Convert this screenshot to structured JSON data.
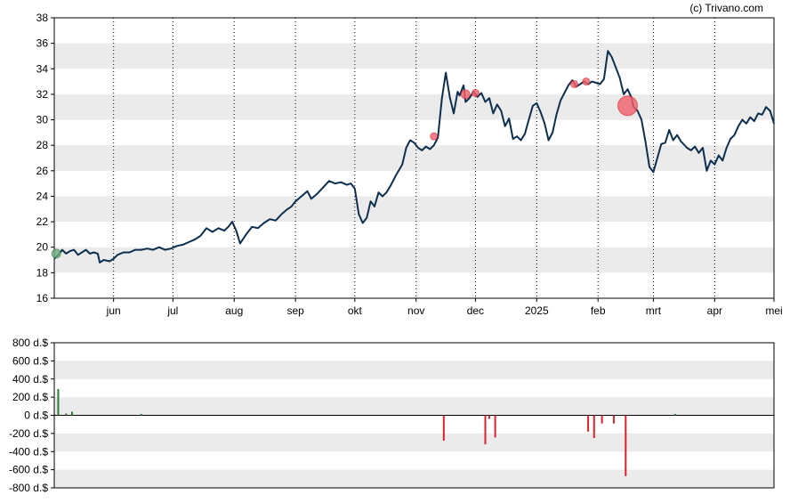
{
  "credit": "(c) Trivano.com",
  "colors": {
    "price_line": "#0d2f4f",
    "band": "#ebebeb",
    "sell": "#e0202a",
    "buy": "#2a7a3a",
    "sell_marker": "#f0606a",
    "buy_marker": "#6fae7f"
  },
  "chart_data": [
    {
      "type": "line",
      "title": "",
      "ylabel": "",
      "ylim": [
        16,
        38
      ],
      "y_ticks": [
        "16",
        "18",
        "20",
        "22",
        "24",
        "26",
        "28",
        "30",
        "32",
        "34",
        "36",
        "38"
      ],
      "x_tick_labels": [
        "jun",
        "jul",
        "aug",
        "sep",
        "okt",
        "nov",
        "dec",
        "2025",
        "feb",
        "mrt",
        "apr",
        "mei"
      ],
      "x_tick_days": [
        30,
        60,
        91,
        122,
        152,
        183,
        213,
        244,
        275,
        303,
        334,
        364
      ],
      "xlim_days": [
        0,
        364
      ],
      "grid": "vertical dotted at month ticks, alternating horizontal bands",
      "series": [
        {
          "name": "",
          "points": [
            [
              0,
              19.1
            ],
            [
              2,
              19.4
            ],
            [
              4,
              19.8
            ],
            [
              6,
              19.5
            ],
            [
              8,
              19.7
            ],
            [
              10,
              19.8
            ],
            [
              12,
              19.4
            ],
            [
              14,
              19.6
            ],
            [
              16,
              19.8
            ],
            [
              18,
              19.5
            ],
            [
              20,
              19.6
            ],
            [
              22,
              19.5
            ],
            [
              23,
              18.8
            ],
            [
              25,
              19.0
            ],
            [
              28,
              18.9
            ],
            [
              30,
              19.1
            ],
            [
              32,
              19.4
            ],
            [
              35,
              19.6
            ],
            [
              38,
              19.6
            ],
            [
              41,
              19.8
            ],
            [
              44,
              19.8
            ],
            [
              47,
              19.9
            ],
            [
              50,
              19.8
            ],
            [
              53,
              20.0
            ],
            [
              56,
              19.8
            ],
            [
              59,
              19.9
            ],
            [
              62,
              20.1
            ],
            [
              65,
              20.2
            ],
            [
              68,
              20.4
            ],
            [
              71,
              20.6
            ],
            [
              74,
              20.9
            ],
            [
              77,
              21.5
            ],
            [
              80,
              21.2
            ],
            [
              83,
              21.5
            ],
            [
              86,
              21.3
            ],
            [
              88,
              21.6
            ],
            [
              90,
              22.0
            ],
            [
              92,
              21.3
            ],
            [
              94,
              20.3
            ],
            [
              97,
              21.0
            ],
            [
              100,
              21.6
            ],
            [
              103,
              21.5
            ],
            [
              106,
              21.9
            ],
            [
              109,
              22.2
            ],
            [
              112,
              22.1
            ],
            [
              115,
              22.6
            ],
            [
              118,
              23.0
            ],
            [
              120,
              23.2
            ],
            [
              122,
              23.6
            ],
            [
              125,
              24.0
            ],
            [
              128,
              24.4
            ],
            [
              130,
              23.8
            ],
            [
              133,
              24.2
            ],
            [
              136,
              24.7
            ],
            [
              139,
              25.2
            ],
            [
              142,
              25.0
            ],
            [
              145,
              25.1
            ],
            [
              148,
              24.9
            ],
            [
              150,
              25.0
            ],
            [
              152,
              24.6
            ],
            [
              154,
              22.6
            ],
            [
              156,
              21.9
            ],
            [
              158,
              22.3
            ],
            [
              160,
              23.6
            ],
            [
              162,
              23.2
            ],
            [
              164,
              24.3
            ],
            [
              166,
              24.0
            ],
            [
              168,
              24.3
            ],
            [
              170,
              24.8
            ],
            [
              173,
              25.7
            ],
            [
              176,
              26.5
            ],
            [
              178,
              27.8
            ],
            [
              180,
              28.4
            ],
            [
              182,
              28.2
            ],
            [
              184,
              27.8
            ],
            [
              186,
              27.6
            ],
            [
              188,
              27.9
            ],
            [
              190,
              27.7
            ],
            [
              192,
              28.0
            ],
            [
              194,
              28.6
            ],
            [
              196,
              31.6
            ],
            [
              198,
              33.7
            ],
            [
              200,
              31.8
            ],
            [
              202,
              30.5
            ],
            [
              204,
              32.2
            ],
            [
              205,
              31.9
            ],
            [
              207,
              32.7
            ],
            [
              208,
              31.4
            ],
            [
              210,
              31.7
            ],
            [
              212,
              32.2
            ],
            [
              214,
              31.8
            ],
            [
              216,
              32.1
            ],
            [
              218,
              31.4
            ],
            [
              220,
              31.7
            ],
            [
              222,
              30.5
            ],
            [
              224,
              31.2
            ],
            [
              226,
              30.7
            ],
            [
              228,
              29.5
            ],
            [
              230,
              30.1
            ],
            [
              232,
              28.5
            ],
            [
              234,
              28.7
            ],
            [
              236,
              28.4
            ],
            [
              238,
              28.9
            ],
            [
              240,
              30.0
            ],
            [
              242,
              31.1
            ],
            [
              244,
              31.3
            ],
            [
              246,
              30.6
            ],
            [
              248,
              29.7
            ],
            [
              250,
              28.4
            ],
            [
              252,
              29.0
            ],
            [
              254,
              30.4
            ],
            [
              256,
              31.5
            ],
            [
              258,
              32.1
            ],
            [
              260,
              32.7
            ],
            [
              262,
              33.1
            ],
            [
              264,
              32.6
            ],
            [
              266,
              32.8
            ],
            [
              268,
              33.0
            ],
            [
              270,
              32.8
            ],
            [
              272,
              33.0
            ],
            [
              274,
              32.9
            ],
            [
              276,
              32.8
            ],
            [
              278,
              33.2
            ],
            [
              280,
              35.4
            ],
            [
              282,
              34.9
            ],
            [
              284,
              34.1
            ],
            [
              286,
              33.3
            ],
            [
              288,
              32.0
            ],
            [
              290,
              32.4
            ],
            [
              292,
              31.7
            ],
            [
              293,
              31.0
            ],
            [
              295,
              30.7
            ],
            [
              297,
              30.0
            ],
            [
              299,
              28.3
            ],
            [
              301,
              26.3
            ],
            [
              303,
              25.9
            ],
            [
              305,
              27.0
            ],
            [
              307,
              28.1
            ],
            [
              309,
              28.2
            ],
            [
              311,
              29.2
            ],
            [
              313,
              28.4
            ],
            [
              315,
              28.8
            ],
            [
              317,
              28.3
            ],
            [
              320,
              27.8
            ],
            [
              322,
              27.6
            ],
            [
              324,
              27.9
            ],
            [
              326,
              27.4
            ],
            [
              328,
              27.8
            ],
            [
              330,
              26.0
            ],
            [
              332,
              26.8
            ],
            [
              334,
              26.5
            ],
            [
              336,
              27.2
            ],
            [
              338,
              26.8
            ],
            [
              340,
              27.8
            ],
            [
              342,
              28.5
            ],
            [
              344,
              28.8
            ],
            [
              346,
              29.5
            ],
            [
              348,
              30.0
            ],
            [
              350,
              29.7
            ],
            [
              352,
              30.2
            ],
            [
              354,
              29.9
            ],
            [
              356,
              30.5
            ],
            [
              358,
              30.4
            ],
            [
              360,
              31.0
            ],
            [
              362,
              30.7
            ],
            [
              364,
              29.7
            ]
          ]
        }
      ],
      "markers": [
        {
          "type": "buy",
          "day": 1,
          "price": 19.5,
          "size": 5
        },
        {
          "type": "sell",
          "day": 192,
          "price": 28.7,
          "size": 4
        },
        {
          "type": "sell",
          "day": 208,
          "price": 32.0,
          "size": 5
        },
        {
          "type": "sell",
          "day": 213,
          "price": 32.1,
          "size": 4
        },
        {
          "type": "sell",
          "day": 263,
          "price": 32.8,
          "size": 4
        },
        {
          "type": "sell",
          "day": 269,
          "price": 33.0,
          "size": 4
        },
        {
          "type": "sell",
          "day": 290,
          "price": 31.1,
          "size": 11
        }
      ]
    },
    {
      "type": "bar",
      "title": "",
      "ylabel": "",
      "ylim": [
        -800,
        800
      ],
      "y_ticks": [
        "800 d.$",
        "600 d.$",
        "400 d.$",
        "200 d.$",
        "0 d.$",
        "-200 d.$",
        "-400 d.$",
        "-600 d.$",
        "-800 d.$"
      ],
      "xlim_days": [
        0,
        364
      ],
      "bars": [
        {
          "day": 2,
          "value": 290
        },
        {
          "day": 6,
          "value": 20
        },
        {
          "day": 9,
          "value": 40
        },
        {
          "day": 44,
          "value": 15
        },
        {
          "day": 197,
          "value": -280
        },
        {
          "day": 218,
          "value": -320
        },
        {
          "day": 220,
          "value": -40
        },
        {
          "day": 223,
          "value": -245
        },
        {
          "day": 270,
          "value": -180
        },
        {
          "day": 273,
          "value": -250
        },
        {
          "day": 277,
          "value": -90
        },
        {
          "day": 283,
          "value": -90
        },
        {
          "day": 289,
          "value": -670
        },
        {
          "day": 314,
          "value": 15
        }
      ]
    }
  ]
}
